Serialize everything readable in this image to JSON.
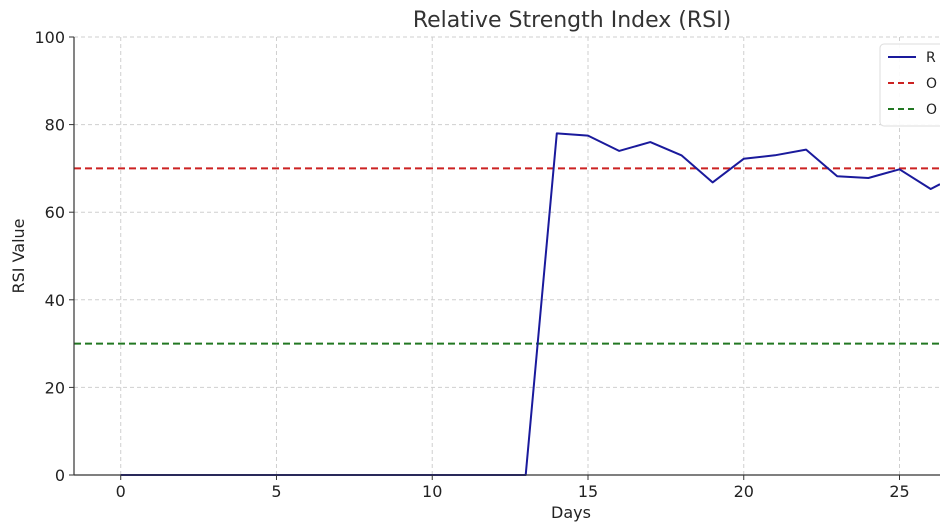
{
  "chart_data": {
    "type": "line",
    "title": "Relative Strength Index (RSI)",
    "xlabel": "Days",
    "ylabel": "RSI Value",
    "xlim": [
      -1.5,
      26.3
    ],
    "ylim": [
      0,
      100
    ],
    "x_ticks": [
      0,
      5,
      10,
      15,
      20,
      25
    ],
    "y_ticks": [
      0,
      20,
      40,
      60,
      80,
      100
    ],
    "grid": true,
    "legend_position": "top-right",
    "series": [
      {
        "name": "R",
        "color": "#1a1a9c",
        "style": "solid",
        "x": [
          0,
          1,
          2,
          3,
          4,
          5,
          6,
          7,
          8,
          9,
          10,
          11,
          12,
          13,
          14,
          15,
          16,
          17,
          18,
          19,
          20,
          21,
          22,
          23,
          24,
          25,
          26,
          26.3
        ],
        "y": [
          0,
          0,
          0,
          0,
          0,
          0,
          0,
          0,
          0,
          0,
          0,
          0,
          0,
          0,
          78,
          77.5,
          74,
          76,
          73,
          66.8,
          72.2,
          73,
          74.3,
          68.2,
          67.8,
          69.8,
          65.3,
          66.4
        ]
      }
    ],
    "reference_lines": [
      {
        "name": "O",
        "y": 70,
        "color": "#cc2222",
        "style": "dashed"
      },
      {
        "name": "O",
        "y": 30,
        "color": "#227722",
        "style": "dashed"
      }
    ]
  }
}
